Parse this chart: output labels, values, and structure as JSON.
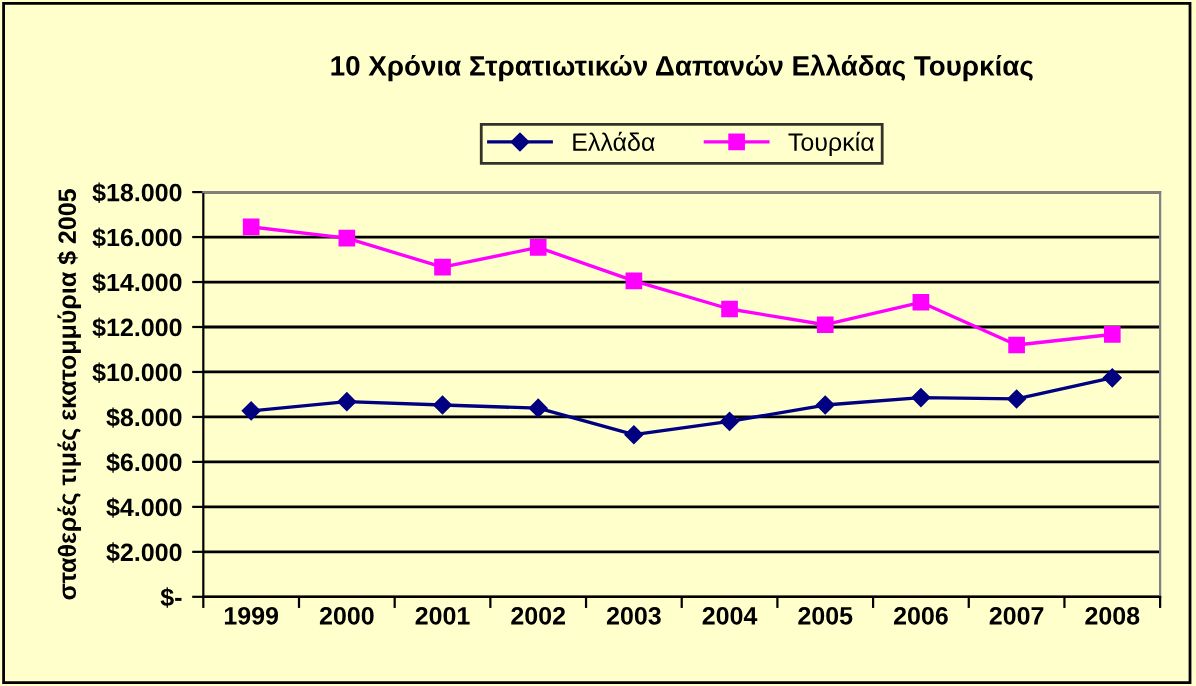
{
  "chart_data": {
    "type": "line",
    "title": "10 Χρόνια Στρατιωτικών Δαπανών Ελλάδας Τουρκίας",
    "ylabel": "σταθερές τιμές εκατομμύρια $ 2005",
    "categories": [
      "1999",
      "2000",
      "2001",
      "2002",
      "2003",
      "2004",
      "2005",
      "2006",
      "2007",
      "2008"
    ],
    "series": [
      {
        "name": "Ελλάδα",
        "color": "#000080",
        "marker": "diamond",
        "values": [
          8270,
          8680,
          8530,
          8390,
          7210,
          7800,
          8530,
          8860,
          8800,
          9740
        ]
      },
      {
        "name": "Τουρκία",
        "color": "#ff00ff",
        "marker": "square",
        "values": [
          16450,
          15950,
          14660,
          15540,
          14050,
          12800,
          12100,
          13100,
          11200,
          11670
        ]
      }
    ],
    "ylim": [
      0,
      18000
    ],
    "yticks": [
      {
        "value": 0,
        "label": "$-"
      },
      {
        "value": 2000,
        "label": "$2.000"
      },
      {
        "value": 4000,
        "label": "$4.000"
      },
      {
        "value": 6000,
        "label": "$6.000"
      },
      {
        "value": 8000,
        "label": "$8.000"
      },
      {
        "value": 10000,
        "label": "$10.000"
      },
      {
        "value": 12000,
        "label": "$12.000"
      },
      {
        "value": 14000,
        "label": "$14.000"
      },
      {
        "value": 16000,
        "label": "$16.000"
      },
      {
        "value": 18000,
        "label": "$18.000"
      }
    ],
    "grid": "y",
    "legend": "top"
  }
}
